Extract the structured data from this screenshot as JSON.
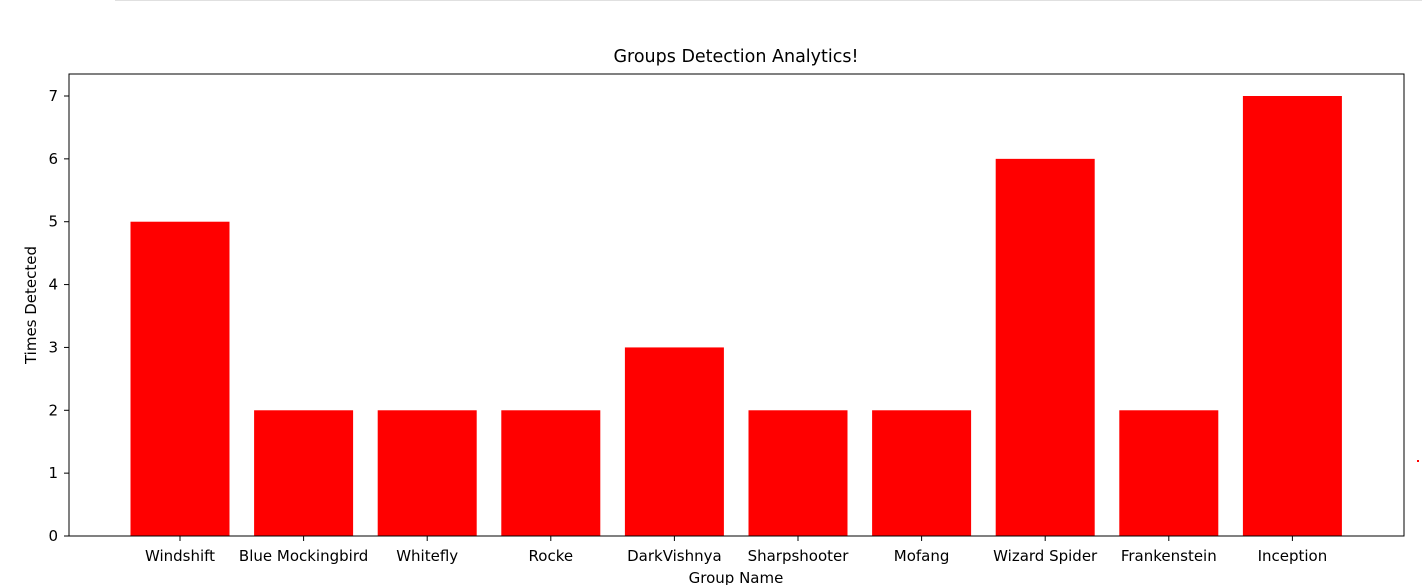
{
  "chart_data": {
    "type": "bar",
    "title": "Groups Detection Analytics!",
    "xlabel": "Group Name",
    "ylabel": "Times Detected",
    "categories": [
      "Windshift",
      "Blue Mockingbird",
      "Whitefly",
      "Rocke",
      "DarkVishnya",
      "Sharpshooter",
      "Mofang",
      "Wizard Spider",
      "Frankenstein",
      "Inception"
    ],
    "values": [
      5,
      2,
      2,
      2,
      3,
      2,
      2,
      6,
      2,
      7
    ],
    "ylim": [
      0,
      7.35
    ],
    "yticks": [
      0,
      1,
      2,
      3,
      4,
      5,
      6,
      7
    ],
    "bar_color": "#ff0000",
    "grid": false,
    "legend": "none"
  }
}
